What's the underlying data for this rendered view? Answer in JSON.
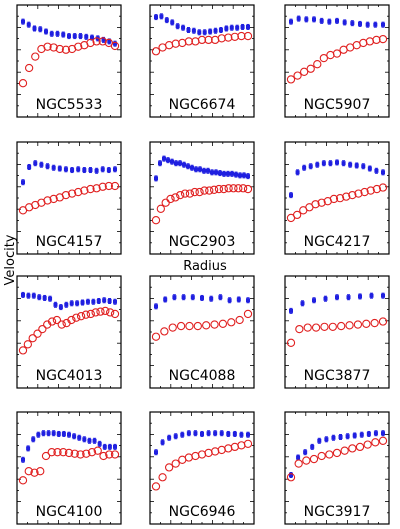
{
  "figure": {
    "xlabel": "Radius",
    "ylabel": "Velocity"
  },
  "colors": {
    "series_a": "#1f1fe0",
    "series_b": "#e02020",
    "frame": "#000000"
  },
  "chart_data": [
    {
      "type": "scatter",
      "title": "NGC5533",
      "series": [
        {
          "marker": "filled-square-errorbar",
          "color": "#1f1fe0",
          "y": [
            0.86,
            0.82,
            0.77,
            0.76,
            0.73,
            0.7,
            0.7,
            0.69,
            0.67,
            0.67,
            0.67,
            0.66,
            0.65,
            0.64,
            0.62,
            0.6,
            0.57
          ]
        },
        {
          "marker": "open-circle",
          "color": "#e02020",
          "y": [
            0.05,
            0.25,
            0.4,
            0.5,
            0.53,
            0.52,
            0.5,
            0.49,
            0.5,
            0.53,
            0.55,
            0.58,
            0.6,
            0.6,
            0.58,
            0.54
          ]
        }
      ]
    },
    {
      "type": "scatter",
      "title": "NGC6674",
      "series": [
        {
          "marker": "filled-square-errorbar",
          "color": "#1f1fe0",
          "y": [
            0.92,
            0.93,
            0.88,
            0.85,
            0.8,
            0.78,
            0.75,
            0.74,
            0.72,
            0.72,
            0.73,
            0.74,
            0.75,
            0.77,
            0.78,
            0.78,
            0.79,
            0.79
          ]
        },
        {
          "marker": "open-circle",
          "color": "#e02020",
          "y": [
            0.47,
            0.52,
            0.55,
            0.57,
            0.58,
            0.6,
            0.6,
            0.62,
            0.62,
            0.62,
            0.64,
            0.65,
            0.66,
            0.67,
            0.67
          ]
        }
      ]
    },
    {
      "type": "scatter",
      "title": "NGC5907",
      "series": [
        {
          "marker": "filled-square-errorbar",
          "color": "#1f1fe0",
          "y": [
            0.86,
            0.9,
            0.89,
            0.89,
            0.87,
            0.86,
            0.87,
            0.85,
            0.84,
            0.83,
            0.82,
            0.82,
            0.82
          ]
        },
        {
          "marker": "open-circle",
          "color": "#e02020",
          "y": [
            0.1,
            0.15,
            0.2,
            0.24,
            0.3,
            0.38,
            0.42,
            0.44,
            0.49,
            0.52,
            0.55,
            0.58,
            0.6,
            0.62,
            0.63
          ]
        }
      ]
    },
    {
      "type": "scatter",
      "title": "NGC4157",
      "series": [
        {
          "marker": "filled-square-errorbar",
          "color": "#1f1fe0",
          "y": [
            0.55,
            0.75,
            0.8,
            0.78,
            0.76,
            0.74,
            0.73,
            0.72,
            0.71,
            0.72,
            0.71,
            0.71,
            0.7,
            0.72,
            0.71,
            0.72
          ]
        },
        {
          "marker": "open-circle",
          "color": "#e02020",
          "y": [
            0.18,
            0.22,
            0.25,
            0.28,
            0.31,
            0.33,
            0.35,
            0.38,
            0.4,
            0.42,
            0.44,
            0.46,
            0.47,
            0.49,
            0.5,
            0.5
          ]
        }
      ]
    },
    {
      "type": "scatter",
      "title": "NGC2903",
      "series": [
        {
          "marker": "filled-square-errorbar",
          "color": "#1f1fe0",
          "y": [
            0.6,
            0.8,
            0.86,
            0.84,
            0.82,
            0.8,
            0.8,
            0.78,
            0.76,
            0.74,
            0.72,
            0.72,
            0.7,
            0.7,
            0.68,
            0.68,
            0.67,
            0.66,
            0.66,
            0.66,
            0.65,
            0.64,
            0.64,
            0.63
          ]
        },
        {
          "marker": "open-circle",
          "color": "#e02020",
          "y": [
            0.05,
            0.2,
            0.28,
            0.33,
            0.35,
            0.38,
            0.4,
            0.4,
            0.42,
            0.42,
            0.44,
            0.44,
            0.45,
            0.46,
            0.46,
            0.47,
            0.47,
            0.47,
            0.47,
            0.46
          ]
        }
      ]
    },
    {
      "type": "scatter",
      "title": "NGC4217",
      "series": [
        {
          "marker": "filled-square-errorbar",
          "color": "#1f1fe0",
          "y": [
            0.38,
            0.68,
            0.74,
            0.76,
            0.78,
            0.8,
            0.8,
            0.81,
            0.8,
            0.78,
            0.77,
            0.76,
            0.73,
            0.7,
            0.68
          ]
        },
        {
          "marker": "open-circle",
          "color": "#e02020",
          "y": [
            0.08,
            0.12,
            0.18,
            0.22,
            0.26,
            0.28,
            0.3,
            0.33,
            0.34,
            0.36,
            0.38,
            0.4,
            0.42,
            0.44,
            0.46,
            0.48
          ]
        }
      ]
    },
    {
      "type": "scatter",
      "title": "NGC4013",
      "series": [
        {
          "marker": "filled-square-errorbar",
          "color": "#1f1fe0",
          "y": [
            0.83,
            0.82,
            0.82,
            0.8,
            0.79,
            0.78,
            0.7,
            0.67,
            0.7,
            0.72,
            0.72,
            0.73,
            0.74,
            0.74,
            0.75,
            0.76,
            0.75,
            0.74
          ]
        },
        {
          "marker": "open-circle",
          "color": "#e02020",
          "y": [
            0.1,
            0.18,
            0.26,
            0.32,
            0.38,
            0.44,
            0.48,
            0.5,
            0.44,
            0.46,
            0.5,
            0.53,
            0.55,
            0.57,
            0.58,
            0.6,
            0.61,
            0.62,
            0.6,
            0.58
          ]
        }
      ]
    },
    {
      "type": "scatter",
      "title": "NGC4088",
      "series": [
        {
          "marker": "filled-square-errorbar",
          "color": "#1f1fe0",
          "y": [
            0.68,
            0.77,
            0.8,
            0.8,
            0.8,
            0.79,
            0.78,
            0.8,
            0.76,
            0.77,
            0.76
          ]
        },
        {
          "marker": "open-circle",
          "color": "#e02020",
          "y": [
            0.28,
            0.35,
            0.4,
            0.42,
            0.42,
            0.42,
            0.43,
            0.44,
            0.45,
            0.47,
            0.5,
            0.58
          ]
        }
      ]
    },
    {
      "type": "scatter",
      "title": "NGC3877",
      "series": [
        {
          "marker": "filled-square-errorbar",
          "color": "#1f1fe0",
          "y": [
            0.62,
            0.72,
            0.76,
            0.78,
            0.8,
            0.8,
            0.81,
            0.82,
            0.82
          ]
        },
        {
          "marker": "open-circle",
          "color": "#e02020",
          "y": [
            0.2,
            0.38,
            0.4,
            0.4,
            0.41,
            0.41,
            0.42,
            0.43,
            0.44,
            0.45,
            0.46,
            0.48
          ]
        }
      ]
    },
    {
      "type": "scatter",
      "title": "NGC4100",
      "series": [
        {
          "marker": "filled-square-errorbar",
          "color": "#1f1fe0",
          "y": [
            0.45,
            0.6,
            0.72,
            0.78,
            0.8,
            0.8,
            0.8,
            0.79,
            0.79,
            0.78,
            0.76,
            0.74,
            0.72,
            0.7,
            0.7,
            0.66,
            0.62,
            0.62,
            0.62
          ]
        },
        {
          "marker": "open-circle",
          "color": "#e02020",
          "y": [
            0.18,
            0.3,
            0.28,
            0.3,
            0.5,
            0.55,
            0.55,
            0.55,
            0.54,
            0.53,
            0.52,
            0.53,
            0.55,
            0.57,
            0.5,
            0.52,
            0.52
          ]
        }
      ]
    },
    {
      "type": "scatter",
      "title": "NGC6946",
      "series": [
        {
          "marker": "filled-square-errorbar",
          "color": "#1f1fe0",
          "y": [
            0.55,
            0.68,
            0.74,
            0.76,
            0.78,
            0.8,
            0.8,
            0.79,
            0.8,
            0.8,
            0.8,
            0.79,
            0.79,
            0.78,
            0.78
          ]
        },
        {
          "marker": "open-circle",
          "color": "#e02020",
          "y": [
            0.1,
            0.22,
            0.35,
            0.4,
            0.45,
            0.48,
            0.5,
            0.52,
            0.54,
            0.56,
            0.58,
            0.6,
            0.62,
            0.64,
            0.66
          ]
        }
      ]
    },
    {
      "type": "scatter",
      "title": "NGC3917",
      "series": [
        {
          "marker": "filled-square-errorbar",
          "color": "#1f1fe0",
          "y": [
            0.25,
            0.48,
            0.55,
            0.62,
            0.7,
            0.72,
            0.74,
            0.75,
            0.76,
            0.77,
            0.78,
            0.79,
            0.8,
            0.8
          ]
        },
        {
          "marker": "open-circle",
          "color": "#e02020",
          "y": [
            0.22,
            0.4,
            0.44,
            0.46,
            0.5,
            0.52,
            0.54,
            0.57,
            0.6,
            0.62,
            0.65,
            0.68,
            0.7
          ]
        }
      ]
    }
  ]
}
